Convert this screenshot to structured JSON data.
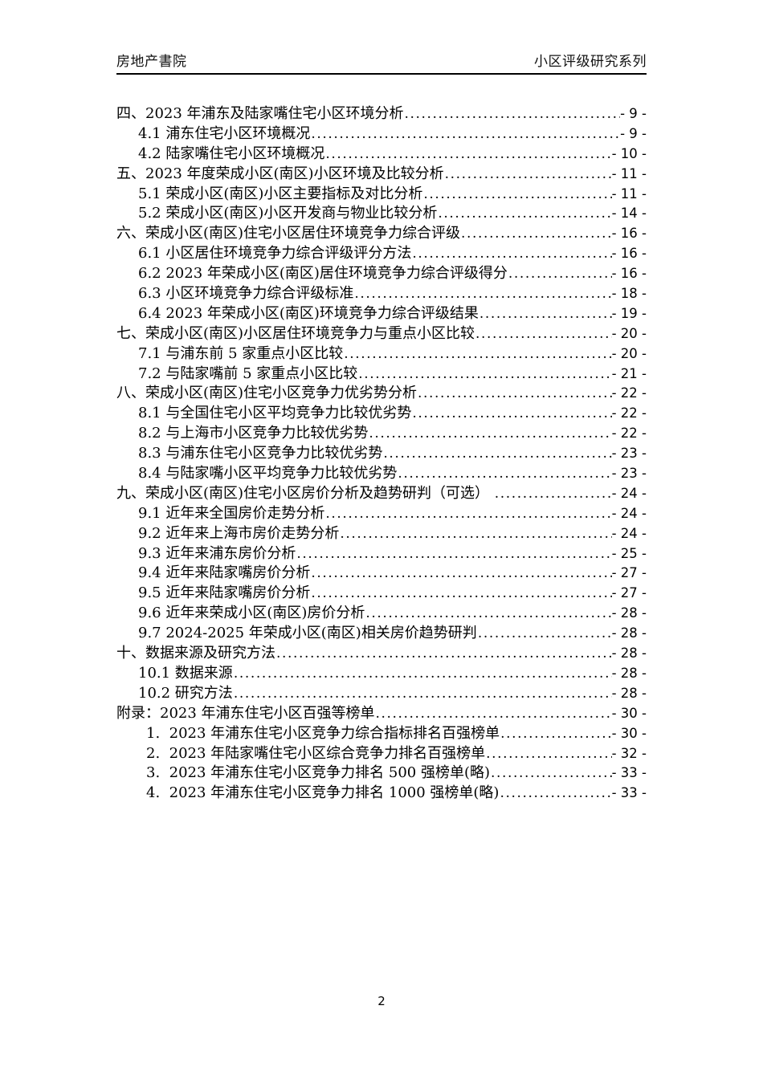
{
  "header": {
    "left_text": "房地产書院",
    "right_text": "小区评级研究系列"
  },
  "toc": {
    "entries": [
      {
        "level": 1,
        "title": "四、2023 年浦东及陆家嘴住宅小区环境分析",
        "page": "- 9 -"
      },
      {
        "level": 2,
        "title": "4.1 浦东住宅小区环境概况",
        "page": "- 9 -"
      },
      {
        "level": 2,
        "title": "4.2 陆家嘴住宅小区环境概况",
        "page": "- 10 -"
      },
      {
        "level": 1,
        "title": "五、2023 年度荣成小区(南区)小区环境及比较分析",
        "page": "- 11 -"
      },
      {
        "level": 2,
        "title": "5.1 荣成小区(南区)小区主要指标及对比分析",
        "page": "- 11 -"
      },
      {
        "level": 2,
        "title": "5.2 荣成小区(南区)小区开发商与物业比较分析",
        "page": "- 14 -"
      },
      {
        "level": 1,
        "title": "六、荣成小区(南区)住宅小区居住环境竞争力综合评级",
        "page": "- 16 -"
      },
      {
        "level": 2,
        "title": "6.1 小区居住环境竞争力综合评级评分方法",
        "page": "- 16 -"
      },
      {
        "level": 2,
        "title": "6.2 2023 年荣成小区(南区)居住环境竞争力综合评级得分",
        "page": "- 16 -"
      },
      {
        "level": 2,
        "title": "6.3 小区环境竞争力综合评级标准",
        "page": "- 18 -"
      },
      {
        "level": 2,
        "title": "6.4 2023 年荣成小区(南区)环境竞争力综合评级结果",
        "page": "- 19 -"
      },
      {
        "level": 1,
        "title": "七、荣成小区(南区)小区居住环境竞争力与重点小区比较",
        "page": "- 20 -"
      },
      {
        "level": 2,
        "title": "7.1 与浦东前 5 家重点小区比较",
        "page": "- 20 -"
      },
      {
        "level": 2,
        "title": "7.2 与陆家嘴前 5 家重点小区比较",
        "page": "- 21 -"
      },
      {
        "level": 1,
        "title": "八、荣成小区(南区)住宅小区竞争力优劣势分析",
        "page": "- 22 -"
      },
      {
        "level": 2,
        "title": "8.1 与全国住宅小区平均竞争力比较优劣势",
        "page": "- 22 -"
      },
      {
        "level": 2,
        "title": "8.2 与上海市小区竞争力比较优劣势",
        "page": "- 22 -"
      },
      {
        "level": 2,
        "title": "8.3 与浦东住宅小区竞争力比较优劣势",
        "page": "- 23 -"
      },
      {
        "level": 2,
        "title": "8.4 与陆家嘴小区平均竞争力比较优劣势",
        "page": "- 23 -"
      },
      {
        "level": 1,
        "title": "九、荣成小区(南区)住宅小区房价分析及趋势研判（可选） ",
        "page": "- 24 -"
      },
      {
        "level": 2,
        "title": "9.1 近年来全国房价走势分析",
        "page": "- 24 -"
      },
      {
        "level": 2,
        "title": "9.2 近年来上海市房价走势分析",
        "page": "- 24 -"
      },
      {
        "level": 2,
        "title": "9.3 近年来浦东房价分析",
        "page": "- 25 -"
      },
      {
        "level": 2,
        "title": "9.4 近年来陆家嘴房价分析",
        "page": "- 27 -"
      },
      {
        "level": 2,
        "title": "9.5 近年来陆家嘴房价分析",
        "page": "- 27 -"
      },
      {
        "level": 2,
        "title": "9.6 近年来荣成小区(南区)房价分析",
        "page": "- 28 -"
      },
      {
        "level": 2,
        "title": "9.7 2024-2025 年荣成小区(南区)相关房价趋势研判",
        "page": "- 28 -"
      },
      {
        "level": 1,
        "title": "十、数据来源及研究方法",
        "page": "- 28 -"
      },
      {
        "level": 2,
        "title": "10.1 数据来源",
        "page": "- 28 -"
      },
      {
        "level": 2,
        "title": "10.2 研究方法",
        "page": "- 28 -"
      },
      {
        "level": 1,
        "title": "附录：2023 年浦东住宅小区百强等榜单",
        "page": "- 30 -"
      },
      {
        "level": 3,
        "title": "1.  2023 年浦东住宅小区竞争力综合指标排名百强榜单",
        "page": "- 30 -"
      },
      {
        "level": 3,
        "title": "2.  2023 年陆家嘴住宅小区综合竞争力排名百强榜单",
        "page": "- 32 -"
      },
      {
        "level": 3,
        "title": "3.  2023 年浦东住宅小区竞争力排名 500 强榜单(略)",
        "page": "- 33 -"
      },
      {
        "level": 3,
        "title": "4.  2023 年浦东住宅小区竞争力排名 1000 强榜单(略)",
        "page": "- 33 -"
      }
    ]
  },
  "footer": {
    "page_number": "2"
  }
}
